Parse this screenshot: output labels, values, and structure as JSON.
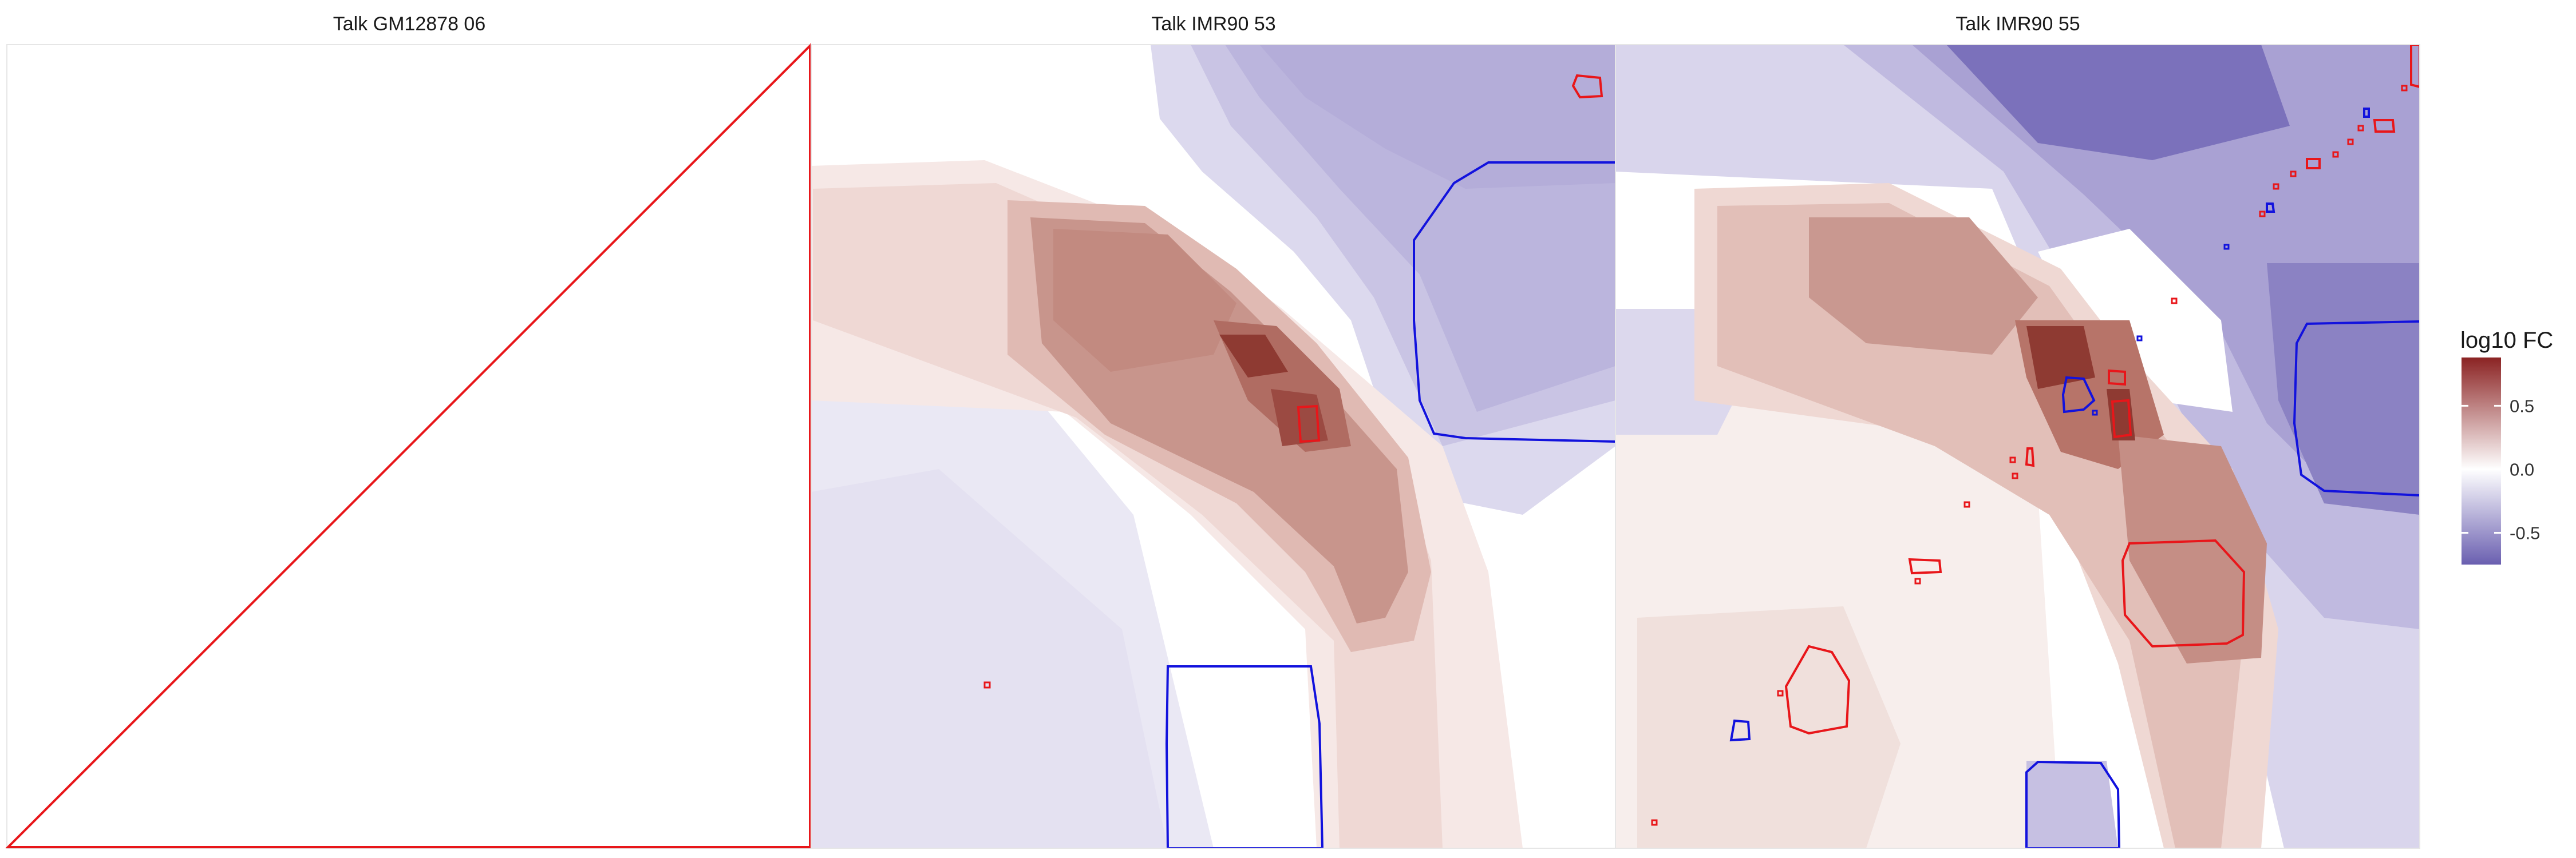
{
  "chart_data": {
    "type": "heatmap",
    "facets": [
      {
        "title": "Talk GM12878 06"
      },
      {
        "title": "Talk IMR90 53"
      },
      {
        "title": "Talk IMR90 55"
      }
    ],
    "legend": {
      "title": "log10 FC",
      "ticks": [
        "0.5",
        "0.0",
        "-0.5"
      ],
      "tick_values": [
        0.5,
        0.0,
        -0.5
      ],
      "range": [
        -0.75,
        0.88
      ],
      "placement": "right",
      "colors": {
        "high": "#8b2323",
        "mid": "#ffffff",
        "low": "#6a5fb0"
      }
    },
    "contour_colors": {
      "positive": "#e8161a",
      "negative": "#1212dd"
    },
    "grid": false
  }
}
